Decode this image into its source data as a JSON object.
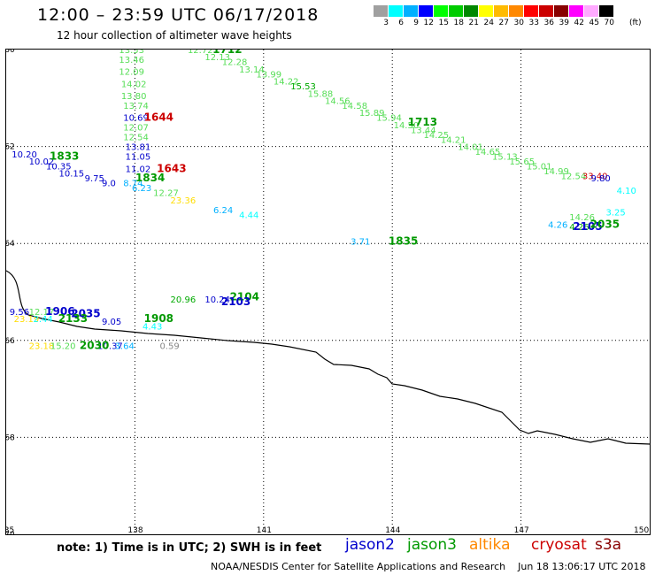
{
  "header": {
    "title": "12:00 – 23:59 UTC 06/17/2018",
    "subtitle": "12 hour collection of altimeter wave heights"
  },
  "scale": {
    "colors": [
      "#a0a0a0",
      "#00ffff",
      "#00b0ff",
      "#0000ff",
      "#00ff00",
      "#00cc00",
      "#008800",
      "#ffff00",
      "#ffbb00",
      "#ff8800",
      "#ff0000",
      "#cc0000",
      "#880000",
      "#ff00ff",
      "#ffaaff",
      "#000000"
    ],
    "labels": [
      "3",
      "6",
      "9",
      "12",
      "15",
      "18",
      "21",
      "24",
      "27",
      "30",
      "33",
      "36",
      "39",
      "42",
      "45",
      "70"
    ],
    "unit": "(ft)"
  },
  "axes": {
    "lat_labels": [
      "-60",
      "-62",
      "-64",
      "-66",
      "-68",
      "-70"
    ],
    "lon_labels": [
      "135",
      "138",
      "141",
      "144",
      "147",
      "150"
    ]
  },
  "footer": {
    "note": "note: 1) Time is in UTC; 2) SWH is in feet",
    "satellites": [
      {
        "name": "jason2",
        "color": "#0000cc"
      },
      {
        "name": "jason3",
        "color": "#009900"
      },
      {
        "name": "altika",
        "color": "#ff8800"
      },
      {
        "name": "cryosat",
        "color": "#cc0000"
      },
      {
        "name": "s3a",
        "color": "#880000"
      }
    ],
    "credit": "NOAA/NESDIS Center for Satellite Applications and Research",
    "timestamp": "Jun 18 13:06:17 UTC 2018"
  },
  "observations": [
    {
      "label": "13.53",
      "color": "#55dd55",
      "lon": 138.0,
      "lat": -60.0
    },
    {
      "label": "13.46",
      "color": "#55dd55",
      "lon": 138.0,
      "lat": -60.2
    },
    {
      "label": "12.09",
      "color": "#55dd55",
      "lon": 138.0,
      "lat": -60.45
    },
    {
      "label": "14.02",
      "color": "#55dd55",
      "lon": 138.05,
      "lat": -60.7
    },
    {
      "label": "13.80",
      "color": "#55dd55",
      "lon": 138.05,
      "lat": -60.95
    },
    {
      "label": "13.74",
      "color": "#55dd55",
      "lon": 138.1,
      "lat": -61.15
    },
    {
      "label": "10.69",
      "color": "#0000cc",
      "lon": 138.1,
      "lat": -61.4
    },
    {
      "label": "12.07",
      "color": "#55dd55",
      "lon": 138.1,
      "lat": -61.6
    },
    {
      "label": "12.54",
      "color": "#55dd55",
      "lon": 138.1,
      "lat": -61.8
    },
    {
      "label": "13.81",
      "color": "#0000cc",
      "lon": 138.15,
      "lat": -62.0
    },
    {
      "label": "11.05",
      "color": "#0000cc",
      "lon": 138.15,
      "lat": -62.2
    },
    {
      "label": "11.02",
      "color": "#0000cc",
      "lon": 138.15,
      "lat": -62.45
    },
    {
      "label": "8.74",
      "color": "#00b0ff",
      "lon": 138.1,
      "lat": -62.75
    },
    {
      "label": "6.23",
      "color": "#00b0ff",
      "lon": 138.3,
      "lat": -62.85
    },
    {
      "label": "12.27",
      "color": "#55dd55",
      "lon": 138.8,
      "lat": -62.95
    },
    {
      "label": "23.36",
      "color": "#ffdd00",
      "lon": 139.2,
      "lat": -63.1
    },
    {
      "label": "6.24",
      "color": "#00b0ff",
      "lon": 140.2,
      "lat": -63.3
    },
    {
      "label": "4.44",
      "color": "#00ffff",
      "lon": 140.8,
      "lat": -63.4
    },
    {
      "label": "10.20",
      "color": "#0000cc",
      "lon": 135.5,
      "lat": -62.15
    },
    {
      "label": "10.02",
      "color": "#0000cc",
      "lon": 135.9,
      "lat": -62.3
    },
    {
      "label": "10.35",
      "color": "#0000cc",
      "lon": 136.3,
      "lat": -62.4
    },
    {
      "label": "10.15",
      "color": "#0000cc",
      "lon": 136.6,
      "lat": -62.55
    },
    {
      "label": "9.75",
      "color": "#0000cc",
      "lon": 137.2,
      "lat": -62.65
    },
    {
      "label": "9.0",
      "color": "#0000cc",
      "lon": 137.6,
      "lat": -62.75
    },
    {
      "label": "12.72",
      "color": "#55dd55",
      "lon": 139.6,
      "lat": -60.0
    },
    {
      "label": "12.13",
      "color": "#55dd55",
      "lon": 140.0,
      "lat": -60.15
    },
    {
      "label": "12.28",
      "color": "#55dd55",
      "lon": 140.4,
      "lat": -60.25
    },
    {
      "label": "13.14",
      "color": "#55dd55",
      "lon": 140.8,
      "lat": -60.4
    },
    {
      "label": "13.99",
      "color": "#55dd55",
      "lon": 141.2,
      "lat": -60.5
    },
    {
      "label": "14.22",
      "color": "#55dd55",
      "lon": 141.6,
      "lat": -60.65
    },
    {
      "label": "15.53",
      "color": "#00aa00",
      "lon": 142.0,
      "lat": -60.75
    },
    {
      "label": "15.88",
      "color": "#55dd55",
      "lon": 142.4,
      "lat": -60.9
    },
    {
      "label": "14.56",
      "color": "#55dd55",
      "lon": 142.8,
      "lat": -61.05
    },
    {
      "label": "14.58",
      "color": "#55dd55",
      "lon": 143.2,
      "lat": -61.15
    },
    {
      "label": "15.89",
      "color": "#55dd55",
      "lon": 143.6,
      "lat": -61.3
    },
    {
      "label": "15.94",
      "color": "#55dd55",
      "lon": 144.0,
      "lat": -61.4
    },
    {
      "label": "14.50",
      "color": "#55dd55",
      "lon": 144.4,
      "lat": -61.55
    },
    {
      "label": "13.44",
      "color": "#55dd55",
      "lon": 144.8,
      "lat": -61.65
    },
    {
      "label": "14.25",
      "color": "#55dd55",
      "lon": 145.1,
      "lat": -61.75
    },
    {
      "label": "14.21",
      "color": "#55dd55",
      "lon": 145.5,
      "lat": -61.85
    },
    {
      "label": "14.01",
      "color": "#55dd55",
      "lon": 145.9,
      "lat": -62.0
    },
    {
      "label": "14.65",
      "color": "#55dd55",
      "lon": 146.3,
      "lat": -62.1
    },
    {
      "label": "15.13",
      "color": "#55dd55",
      "lon": 146.7,
      "lat": -62.2
    },
    {
      "label": "15.65",
      "color": "#55dd55",
      "lon": 147.1,
      "lat": -62.3
    },
    {
      "label": "15.01",
      "color": "#55dd55",
      "lon": 147.5,
      "lat": -62.4
    },
    {
      "label": "14.99",
      "color": "#55dd55",
      "lon": 147.9,
      "lat": -62.5
    },
    {
      "label": "12.54",
      "color": "#55dd55",
      "lon": 148.3,
      "lat": -62.6
    },
    {
      "label": "33.40",
      "color": "#cc0000",
      "lon": 148.8,
      "lat": -62.6
    },
    {
      "label": "9.80",
      "color": "#0000cc",
      "lon": 149.0,
      "lat": -62.65
    },
    {
      "label": "4.10",
      "color": "#00ffff",
      "lon": 149.6,
      "lat": -62.9
    },
    {
      "label": "3.25",
      "color": "#00ffff",
      "lon": 149.35,
      "lat": -63.35
    },
    {
      "label": "14.26",
      "color": "#55dd55",
      "lon": 148.5,
      "lat": -63.45
    },
    {
      "label": "4.26",
      "color": "#00b0ff",
      "lon": 148.0,
      "lat": -63.6
    },
    {
      "label": "4.26",
      "color": "#00aa00",
      "lon": 148.5,
      "lat": -63.65
    },
    {
      "label": "3.71",
      "color": "#00b0ff",
      "lon": 143.4,
      "lat": -63.95
    },
    {
      "label": "9.56",
      "color": "#0000cc",
      "lon": 135.45,
      "lat": -65.4
    },
    {
      "label": "12.17",
      "color": "#55dd55",
      "lon": 135.9,
      "lat": -65.4
    },
    {
      "label": "23.19",
      "color": "#ffdd00",
      "lon": 135.55,
      "lat": -65.55
    },
    {
      "label": "2.44",
      "color": "#00ffff",
      "lon": 136.0,
      "lat": -65.55
    },
    {
      "label": "9.05",
      "color": "#0000cc",
      "lon": 137.6,
      "lat": -65.6
    },
    {
      "label": "4.43",
      "color": "#00ffff",
      "lon": 138.55,
      "lat": -65.7
    },
    {
      "label": "20.96",
      "color": "#00aa00",
      "lon": 139.2,
      "lat": -65.15
    },
    {
      "label": "10.24",
      "color": "#0000cc",
      "lon": 140.0,
      "lat": -65.15
    },
    {
      "label": "23.18",
      "color": "#ffdd00",
      "lon": 135.9,
      "lat": -66.1
    },
    {
      "label": "15.20",
      "color": "#55dd55",
      "lon": 136.4,
      "lat": -66.1
    },
    {
      "label": "10.37",
      "color": "#0000cc",
      "lon": 137.5,
      "lat": -66.1
    },
    {
      "label": "3.64",
      "color": "#00b0ff",
      "lon": 137.9,
      "lat": -66.1
    },
    {
      "label": "0.59",
      "color": "#888888",
      "lon": 138.95,
      "lat": -66.1
    }
  ],
  "times": [
    {
      "label": "1712",
      "color": "#009900",
      "lon": 140.1,
      "lat": -60.0
    },
    {
      "label": "1644",
      "color": "#cc0000",
      "lon": 138.5,
      "lat": -61.4
    },
    {
      "label": "1833",
      "color": "#009900",
      "lon": 136.3,
      "lat": -62.2
    },
    {
      "label": "1643",
      "color": "#cc0000",
      "lon": 138.8,
      "lat": -62.45
    },
    {
      "label": "1834",
      "color": "#009900",
      "lon": 138.3,
      "lat": -62.65
    },
    {
      "label": "1713",
      "color": "#009900",
      "lon": 144.65,
      "lat": -61.5
    },
    {
      "label": "2105",
      "color": "#0000cc",
      "lon": 148.5,
      "lat": -63.65
    },
    {
      "label": "2035",
      "color": "#009900",
      "lon": 148.9,
      "lat": -63.6
    },
    {
      "label": "1835",
      "color": "#009900",
      "lon": 144.2,
      "lat": -63.95
    },
    {
      "label": "2104",
      "color": "#009900",
      "lon": 140.5,
      "lat": -65.1
    },
    {
      "label": "2103",
      "color": "#0000cc",
      "lon": 140.3,
      "lat": -65.2
    },
    {
      "label": "1908",
      "color": "#009900",
      "lon": 138.5,
      "lat": -65.55
    },
    {
      "label": "1906",
      "color": "#0000cc",
      "lon": 136.2,
      "lat": -65.4
    },
    {
      "label": "2035",
      "color": "#0000cc",
      "lon": 136.8,
      "lat": -65.45
    },
    {
      "label": "2133",
      "color": "#009900",
      "lon": 136.5,
      "lat": -65.55
    },
    {
      "label": "2030",
      "color": "#009900",
      "lon": 137.0,
      "lat": -66.1
    }
  ]
}
